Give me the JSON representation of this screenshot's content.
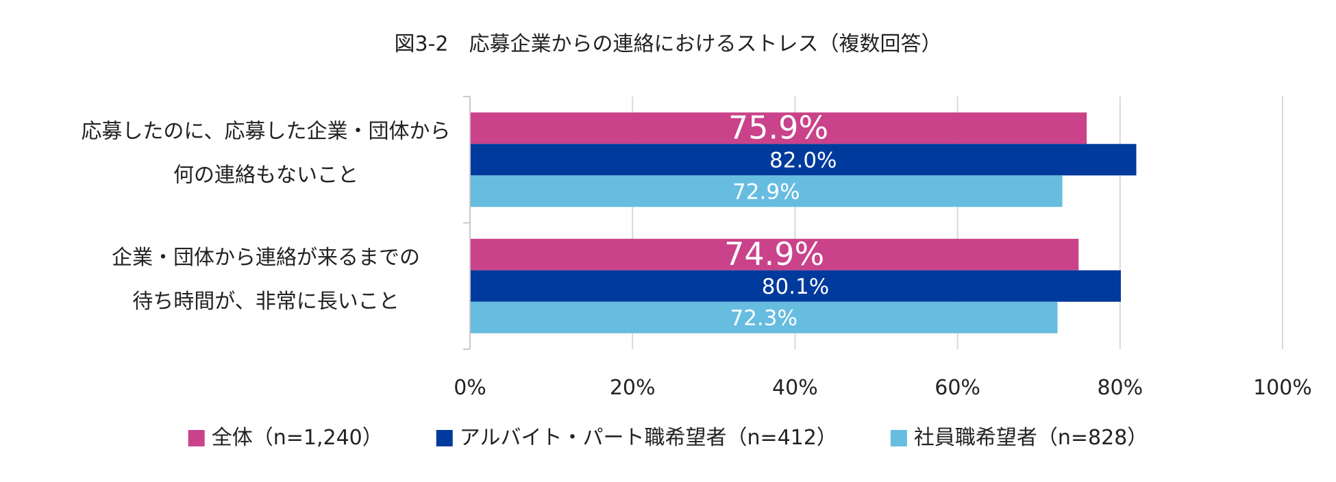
{
  "chart_data": {
    "type": "bar",
    "orientation": "horizontal",
    "title": "図3-2　応募企業からの連絡におけるストレス（複数回答）",
    "categories": [
      [
        "応募したのに、応募した企業・団体から",
        "何の連絡もないこと"
      ],
      [
        "企業・団体から連絡が来るまでの",
        "待ち時間が、非常に長いこと"
      ]
    ],
    "series": [
      {
        "name": "全体（n=1,240）",
        "color": "#c9428a",
        "values": [
          75.9,
          74.9
        ],
        "labels": [
          "75.9%",
          "74.9%"
        ]
      },
      {
        "name": "アルバイト・パート職希望者（n=412）",
        "color": "#003a9c",
        "values": [
          82.0,
          80.1
        ],
        "labels": [
          "82.0%",
          "80.1%"
        ]
      },
      {
        "name": "社員職希望者（n=828）",
        "color": "#66bde0",
        "values": [
          72.9,
          72.3
        ],
        "labels": [
          "72.9%",
          "72.3%"
        ]
      }
    ],
    "xlim": [
      0,
      100
    ],
    "xticks": [
      "0%",
      "20%",
      "40%",
      "60%",
      "80%",
      "100%"
    ],
    "xlabel": "",
    "ylabel": "",
    "grid": true,
    "legend_position": "bottom"
  }
}
